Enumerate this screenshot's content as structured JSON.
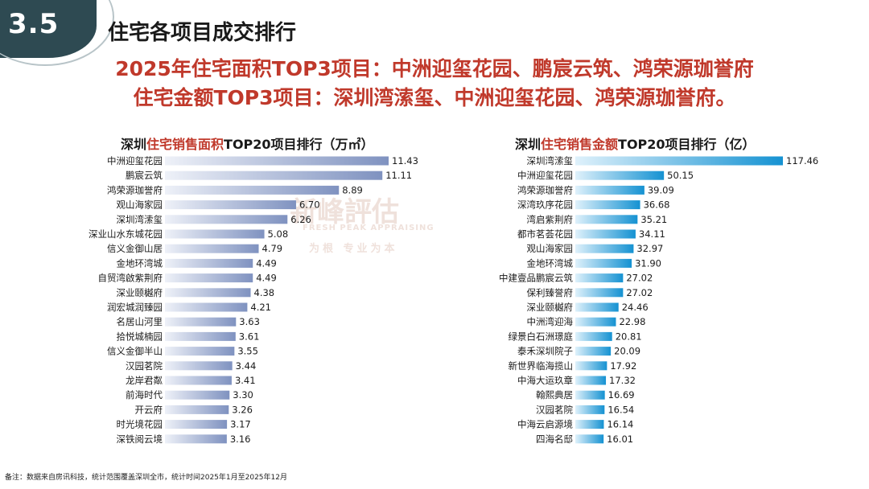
{
  "section_badge": "3.5",
  "page_title": "住宅各项目成交排行",
  "headline_1": "2025年住宅面积TOP3项目：中洲迎玺花园、鹏宸云筑、鸿荣源珈誉府",
  "headline_2": "住宅金额TOP3项目：深圳湾溹玺、中洲迎玺花园、鸿荣源珈誉府。",
  "watermark": "新峰評估",
  "watermark_sub": "FRESH PEAK APPRAISING",
  "watermark_motto": "为根  专业为本",
  "footnote": "备注：数据来自房讯科技，统计范围覆盖深圳全市，统计时间2025年1月至2025年12月",
  "colors": {
    "left_bar": "#8fa0c8",
    "right_bar": "#1a9ad6",
    "accent_red": "#c0392b",
    "badge": "#2e4a52"
  },
  "chart_data": [
    {
      "type": "bar",
      "orientation": "horizontal",
      "title_prefix": "深圳",
      "title_highlight": "住宅销售面积",
      "title_suffix": "TOP20项目排行（万㎡）",
      "categories": [
        "中洲迎玺花园",
        "鹏宸云筑",
        "鸿荣源珈誉府",
        "观山海家园",
        "深圳湾溹玺",
        "深业山水东城花园",
        "信义金御山居",
        "金地环湾城",
        "自贸湾啟紫荆府",
        "深业颐樾府",
        "润宏城润臻园",
        "名居山河里",
        "拾悦城楠园",
        "信义金御半山",
        "汉园茗院",
        "龙岸君粼",
        "前海时代",
        "开云府",
        "时光境花园",
        "深铁阅云境"
      ],
      "values": [
        11.43,
        11.11,
        8.89,
        6.7,
        6.26,
        5.08,
        4.79,
        4.49,
        4.49,
        4.38,
        4.21,
        3.63,
        3.61,
        3.55,
        3.44,
        3.41,
        3.3,
        3.26,
        3.17,
        3.16
      ],
      "value_labels": [
        "11.43",
        "11.11",
        "8.89",
        "6.70",
        "6.26",
        "5.08",
        "4.79",
        "4.49",
        "4.49",
        "4.38",
        "4.21",
        "3.63",
        "3.61",
        "3.55",
        "3.44",
        "3.41",
        "3.30",
        "3.26",
        "3.17",
        "3.16"
      ]
    },
    {
      "type": "bar",
      "orientation": "horizontal",
      "title_prefix": "深圳",
      "title_highlight": "住宅销售金额",
      "title_suffix": "TOP20项目排行（亿）",
      "categories": [
        "深圳湾溹玺",
        "中洲迎玺花园",
        "鸿荣源珈誉府",
        "深湾玖序花园",
        "湾启紫荆府",
        "都市茗荟花园",
        "观山海家园",
        "金地环湾城",
        "中建壹品鹏宸云筑",
        "保利臻誉府",
        "深业颐樾府",
        "中洲湾迎海",
        "绿景白石洲璟庭",
        "泰禾深圳院子",
        "新世界临海揽山",
        "中海大运玖章",
        "翰熙典居",
        "汉园茗院",
        "中海云启源境",
        "四海名邸"
      ],
      "values": [
        117.46,
        50.15,
        39.09,
        36.68,
        35.21,
        34.11,
        32.97,
        31.9,
        27.02,
        27.02,
        24.46,
        22.98,
        20.81,
        20.09,
        17.92,
        17.32,
        16.69,
        16.54,
        16.14,
        16.01
      ],
      "value_labels": [
        "117.46",
        "50.15",
        "39.09",
        "36.68",
        "35.21",
        "34.11",
        "32.97",
        "31.90",
        "27.02",
        "27.02",
        "24.46",
        "22.98",
        "20.81",
        "20.09",
        "17.92",
        "17.32",
        "16.69",
        "16.54",
        "16.14",
        "16.01"
      ]
    }
  ]
}
